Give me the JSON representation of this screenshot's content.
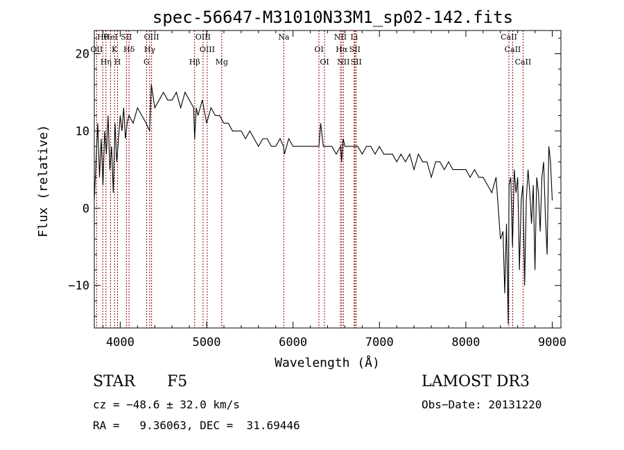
{
  "chart_data": {
    "type": "line",
    "title": "spec-56647-M31010N33M1_sp02-142.fits",
    "xlabel": "Wavelength (Å)",
    "ylabel": "Flux (relative)",
    "xlim": [
      3700,
      9100
    ],
    "ylim": [
      -15.5,
      23
    ],
    "x_ticks": [
      4000,
      5000,
      6000,
      7000,
      8000,
      9000
    ],
    "x_tick_labels": [
      "4000",
      "5000",
      "6000",
      "7000",
      "8000",
      "9000"
    ],
    "y_ticks": [
      -10,
      0,
      10,
      20
    ],
    "y_tick_labels": [
      "−10",
      "0",
      "10",
      "20"
    ],
    "series": [
      {
        "name": "flux",
        "x": [
          3700,
          3720,
          3740,
          3760,
          3780,
          3800,
          3820,
          3840,
          3860,
          3880,
          3900,
          3920,
          3940,
          3960,
          3980,
          4000,
          4020,
          4040,
          4060,
          4080,
          4100,
          4150,
          4200,
          4250,
          4300,
          4340,
          4360,
          4400,
          4450,
          4500,
          4550,
          4600,
          4650,
          4700,
          4750,
          4800,
          4850,
          4861,
          4880,
          4900,
          4950,
          5000,
          5050,
          5100,
          5150,
          5200,
          5250,
          5300,
          5350,
          5400,
          5450,
          5500,
          5550,
          5600,
          5650,
          5700,
          5750,
          5800,
          5850,
          5890,
          5900,
          5950,
          6000,
          6050,
          6100,
          6150,
          6200,
          6250,
          6300,
          6320,
          6350,
          6400,
          6450,
          6500,
          6550,
          6563,
          6580,
          6600,
          6650,
          6700,
          6750,
          6800,
          6850,
          6900,
          6950,
          7000,
          7050,
          7100,
          7150,
          7200,
          7250,
          7300,
          7350,
          7400,
          7450,
          7500,
          7550,
          7600,
          7650,
          7700,
          7750,
          7800,
          7850,
          7900,
          7950,
          8000,
          8050,
          8100,
          8150,
          8200,
          8250,
          8300,
          8350,
          8400,
          8430,
          8450,
          8470,
          8490,
          8500,
          8520,
          8540,
          8560,
          8580,
          8600,
          8620,
          8640,
          8660,
          8680,
          8700,
          8720,
          8740,
          8760,
          8780,
          8800,
          8820,
          8840,
          8860,
          8880,
          8900,
          8920,
          8940,
          8960,
          8980,
          9000
        ],
        "y": [
          1,
          6,
          11,
          4,
          9,
          3,
          10,
          7,
          12,
          5,
          8,
          2,
          11,
          6,
          9,
          12,
          10,
          13,
          9,
          11,
          12,
          11,
          13,
          12,
          11,
          10,
          16,
          13,
          14,
          15,
          14,
          14,
          15,
          13,
          15,
          14,
          13,
          9,
          13,
          12,
          14,
          11,
          13,
          12,
          12,
          11,
          11,
          10,
          10,
          10,
          9,
          10,
          9,
          8,
          9,
          9,
          8,
          8,
          9,
          8,
          7,
          9,
          8,
          8,
          8,
          8,
          8,
          8,
          8,
          11,
          8,
          8,
          8,
          7,
          8,
          6,
          9,
          8,
          8,
          8,
          8,
          7,
          8,
          8,
          7,
          8,
          7,
          7,
          7,
          6,
          7,
          6,
          7,
          5,
          7,
          6,
          6,
          4,
          6,
          6,
          5,
          6,
          5,
          5,
          5,
          5,
          4,
          5,
          4,
          4,
          3,
          2,
          4,
          -4,
          -3,
          -11,
          -2,
          -15,
          3,
          4,
          -5,
          5,
          2,
          4,
          -8,
          1,
          3,
          -10,
          1,
          5,
          2,
          -2,
          3,
          -8,
          4,
          2,
          -3,
          4,
          6,
          -1,
          -6,
          8,
          6,
          1
        ]
      }
    ],
    "line_markers": [
      {
        "label": "Hθ",
        "wavelength": 3798
      },
      {
        "label": "OII",
        "wavelength": 3727
      },
      {
        "label": "Hη",
        "wavelength": 3835
      },
      {
        "label": "HeI",
        "wavelength": 3889
      },
      {
        "label": "K",
        "wavelength": 3934
      },
      {
        "label": "H",
        "wavelength": 3969
      },
      {
        "label": "SII",
        "wavelength": 4072
      },
      {
        "label": "Hδ",
        "wavelength": 4102
      },
      {
        "label": "G",
        "wavelength": 4305
      },
      {
        "label": "OIII",
        "wavelength": 4363
      },
      {
        "label": "Hγ",
        "wavelength": 4341
      },
      {
        "label": "Hβ",
        "wavelength": 4861
      },
      {
        "label": "OIII",
        "wavelength": 4959
      },
      {
        "label": "OIII",
        "wavelength": 5007
      },
      {
        "label": "Mg",
        "wavelength": 5175
      },
      {
        "label": "Na",
        "wavelength": 5893
      },
      {
        "label": "OI",
        "wavelength": 6300
      },
      {
        "label": "OI",
        "wavelength": 6364
      },
      {
        "label": "NII",
        "wavelength": 6548
      },
      {
        "label": "Hα",
        "wavelength": 6563
      },
      {
        "label": "NII",
        "wavelength": 6583
      },
      {
        "label": "Li",
        "wavelength": 6708
      },
      {
        "label": "SII",
        "wavelength": 6716
      },
      {
        "label": "SII",
        "wavelength": 6731
      },
      {
        "label": "CaII",
        "wavelength": 8498
      },
      {
        "label": "CaII",
        "wavelength": 8542
      },
      {
        "label": "CaII",
        "wavelength": 8662
      }
    ]
  },
  "info": {
    "object_class": "STAR",
    "subclass": "F5",
    "survey": "LAMOST DR3",
    "redshift": "cz = −48.6 ± 32.0 km/s",
    "obs_date": "Obs−Date: 20131220",
    "coords": "RA =   9.36063, DEC =  31.69446"
  },
  "colors": {
    "line_marker": "#8b0000",
    "spectrum": "#000000",
    "axes": "#000000"
  }
}
